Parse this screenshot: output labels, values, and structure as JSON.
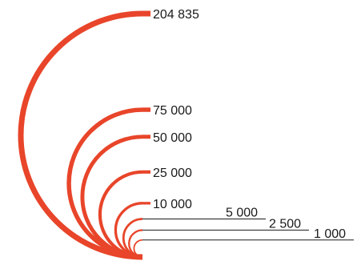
{
  "chart_data": {
    "type": "arc",
    "series": [
      {
        "label": "204 835",
        "value": 204835
      },
      {
        "label": "75 000",
        "value": 75000
      },
      {
        "label": "50 000",
        "value": 50000
      },
      {
        "label": "25 000",
        "value": 25000
      },
      {
        "label": "10 000",
        "value": 10000
      },
      {
        "label": "5 000",
        "value": 5000
      },
      {
        "label": "2 500",
        "value": 2500
      },
      {
        "label": "1 000",
        "value": 1000
      }
    ],
    "colors": {
      "arc": "#e8452a",
      "leader": "#1a1a1a",
      "text": "#1a1a1a"
    }
  }
}
